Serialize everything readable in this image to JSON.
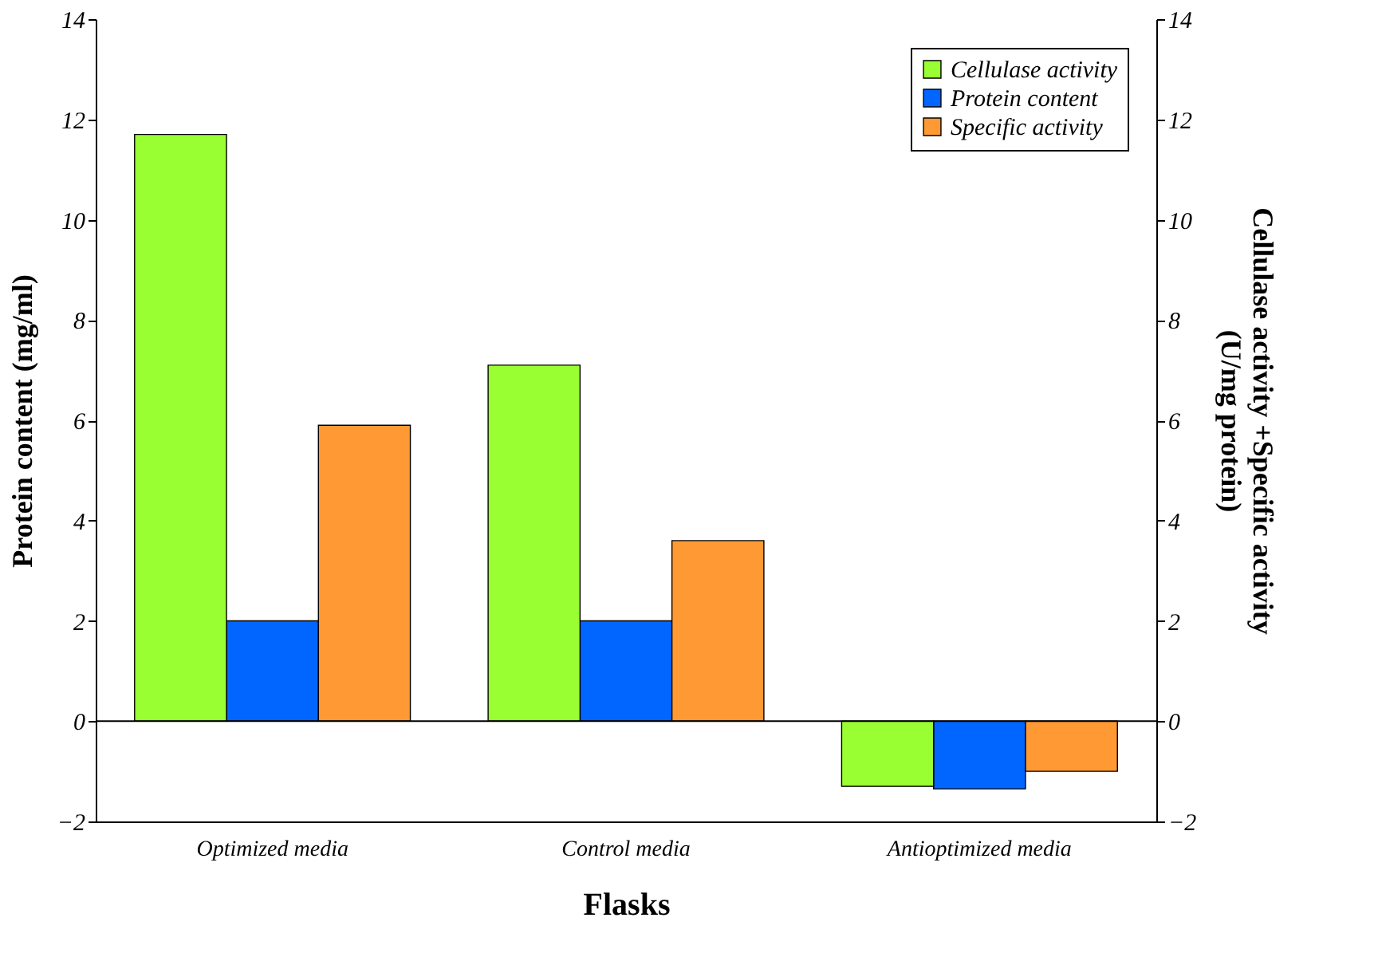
{
  "chart_data": {
    "type": "bar",
    "xlabel": "Flasks",
    "ylabel": "Protein content (mg/ml)",
    "y2label": "Cellulase activity +Specific activity\n(U/mg protein)",
    "categories": [
      "Optimized media",
      "Control media",
      "Antioptimized media"
    ],
    "series": [
      {
        "name": "Cellulase activity",
        "color": "#99ff33",
        "axis": "y2",
        "values": [
          11.7,
          7.1,
          -1.3
        ]
      },
      {
        "name": "Protein content",
        "color": "#0066ff",
        "values": [
          2.0,
          2.0,
          -1.35
        ]
      },
      {
        "name": "Specific activity",
        "color": "#ff9933",
        "axis": "y2",
        "values": [
          5.9,
          3.6,
          -1.0
        ]
      }
    ],
    "ylim": [
      -2,
      14
    ],
    "yticks": [
      -2,
      0,
      2,
      4,
      6,
      8,
      10,
      12,
      14
    ],
    "y2lim": [
      -2,
      14
    ],
    "y2ticks": [
      -2,
      0,
      2,
      4,
      6,
      8,
      10,
      12,
      14
    ],
    "ref_lines": [
      {
        "axis": "y",
        "value": 0
      }
    ],
    "grid": false,
    "legend": "top right"
  }
}
